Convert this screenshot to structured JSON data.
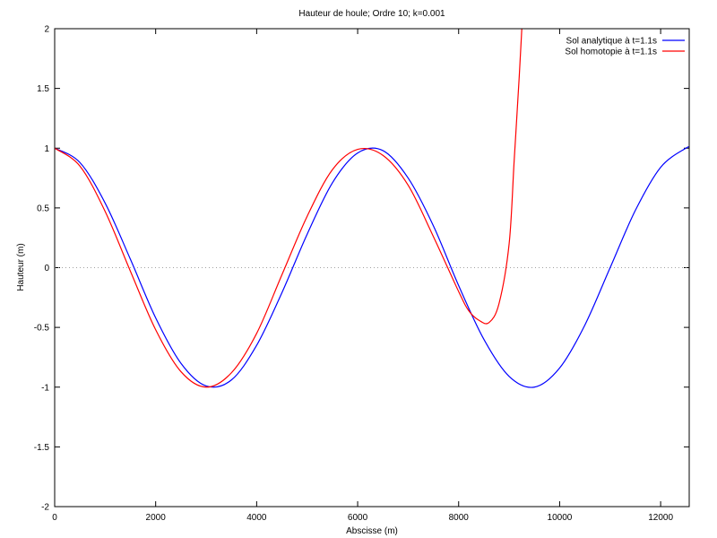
{
  "chart_data": {
    "type": "line",
    "title": "Hauteur de houle; Ordre 10; k=0.001",
    "xlabel": "Abscisse (m)",
    "ylabel": "Hauteur (m)",
    "xlim": [
      0,
      12566
    ],
    "ylim": [
      -2,
      2
    ],
    "x_ticks": [
      0,
      2000,
      4000,
      6000,
      8000,
      10000,
      12000
    ],
    "x_tick_labels": [
      "0",
      "2000",
      "4000",
      "6000",
      "8000",
      "10000",
      "12000"
    ],
    "y_ticks": [
      -2,
      -1.5,
      -1,
      -0.5,
      0,
      0.5,
      1,
      1.5,
      2
    ],
    "y_tick_labels": [
      "-2",
      "-1.5",
      "-1",
      "-0.5",
      "0",
      "0.5",
      "1",
      "1.5",
      "2"
    ],
    "zero_line": true,
    "legend_position": "top-right",
    "series": [
      {
        "name": "Sol analytique à t=1.1s",
        "color": "#0000ff",
        "x": [
          0,
          500,
          1000,
          1500,
          2000,
          2500,
          3000,
          3500,
          4000,
          4500,
          5000,
          5500,
          6000,
          6500,
          7000,
          7500,
          8000,
          8500,
          9000,
          9500,
          10000,
          10500,
          11000,
          11500,
          12000,
          12500,
          12566
        ],
        "y": [
          1.0,
          0.88,
          0.54,
          0.07,
          -0.42,
          -0.8,
          -0.99,
          -0.94,
          -0.65,
          -0.21,
          0.28,
          0.71,
          0.96,
          0.98,
          0.75,
          0.35,
          -0.15,
          -0.6,
          -0.91,
          -1.0,
          -0.84,
          -0.48,
          0.0,
          0.48,
          0.84,
          1.0,
          1.0
        ]
      },
      {
        "name": "Sol homotopie à t=1.1s",
        "color": "#ff0000",
        "x": [
          0,
          500,
          1000,
          1500,
          2000,
          2500,
          3000,
          3500,
          4000,
          4500,
          5000,
          5500,
          6000,
          6500,
          7000,
          7500,
          8000,
          8200,
          8400,
          8600,
          8800,
          9000,
          9100,
          9200,
          9300
        ],
        "y": [
          1.0,
          0.85,
          0.47,
          -0.03,
          -0.52,
          -0.87,
          -1.0,
          -0.88,
          -0.55,
          -0.06,
          0.43,
          0.82,
          0.99,
          0.94,
          0.69,
          0.26,
          -0.2,
          -0.36,
          -0.44,
          -0.46,
          -0.3,
          0.2,
          0.9,
          1.6,
          2.4
        ]
      }
    ]
  }
}
